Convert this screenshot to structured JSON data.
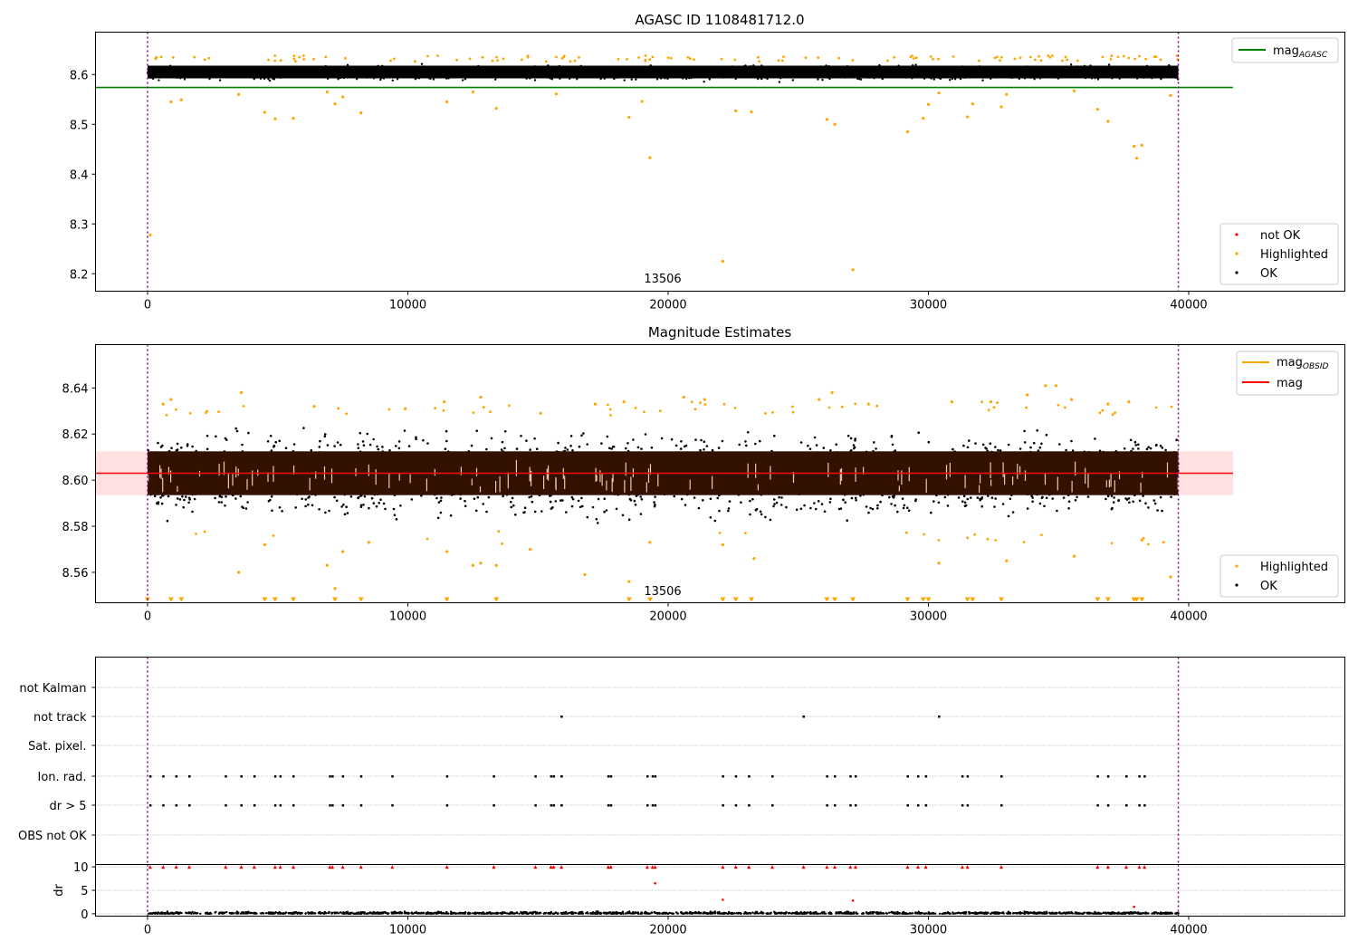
{
  "chart_data": [
    {
      "type": "scatter",
      "title": "AGASC ID 1108481712.0",
      "xlim": [
        -2000,
        46000
      ],
      "ylim": [
        8.165,
        8.685
      ],
      "xticks": [
        0,
        10000,
        20000,
        30000,
        40000
      ],
      "yticks": [
        8.2,
        8.3,
        8.4,
        8.5,
        8.6
      ],
      "ytick_labels": [
        "8.2",
        "8.3",
        "8.4",
        "8.5",
        "8.6"
      ],
      "vlines": [
        0,
        39600
      ],
      "annotation": {
        "text": "13506",
        "x": 19600,
        "y": 8.175
      },
      "band": {
        "xmin": 0,
        "xmax": 39600,
        "ymin": 8.585,
        "ymax": 8.625
      },
      "hline": {
        "name": "mag_AGASC",
        "value": 8.574,
        "xmin": -2000,
        "xmax": 41700,
        "color": "#008000"
      },
      "legend_lines": [
        {
          "label": "mag",
          "sub": "AGASC",
          "color": "#008000"
        }
      ],
      "legend_points": [
        {
          "label": "not OK",
          "color": "#ff0000"
        },
        {
          "label": "Highlighted",
          "color": "#ffa500"
        },
        {
          "label": "OK",
          "color": "#000000"
        }
      ],
      "highlighted_points": [
        [
          100,
          8.278
        ],
        [
          900,
          8.545
        ],
        [
          1300,
          8.549
        ],
        [
          3500,
          8.56
        ],
        [
          4500,
          8.524
        ],
        [
          4900,
          8.511
        ],
        [
          5600,
          8.512
        ],
        [
          6900,
          8.565
        ],
        [
          7200,
          8.541
        ],
        [
          7500,
          8.555
        ],
        [
          8200,
          8.523
        ],
        [
          11500,
          8.545
        ],
        [
          12500,
          8.565
        ],
        [
          13400,
          8.532
        ],
        [
          15700,
          8.561
        ],
        [
          18500,
          8.514
        ],
        [
          19000,
          8.546
        ],
        [
          19300,
          8.433
        ],
        [
          22100,
          8.225
        ],
        [
          22600,
          8.527
        ],
        [
          23200,
          8.525
        ],
        [
          26100,
          8.51
        ],
        [
          26400,
          8.5
        ],
        [
          27100,
          8.208
        ],
        [
          29200,
          8.485
        ],
        [
          29800,
          8.512
        ],
        [
          30000,
          8.54
        ],
        [
          30400,
          8.563
        ],
        [
          31500,
          8.515
        ],
        [
          31700,
          8.541
        ],
        [
          32800,
          8.535
        ],
        [
          33000,
          8.56
        ],
        [
          35600,
          8.567
        ],
        [
          36500,
          8.53
        ],
        [
          36900,
          8.506
        ],
        [
          37900,
          8.456
        ],
        [
          38000,
          8.432
        ],
        [
          38200,
          8.458
        ],
        [
          39300,
          8.558
        ]
      ]
    },
    {
      "type": "scatter",
      "title": "Magnitude Estimates",
      "xlim": [
        -2000,
        46000
      ],
      "ylim": [
        8.5468,
        8.6588
      ],
      "xticks": [
        0,
        10000,
        20000,
        30000,
        40000
      ],
      "yticks": [
        8.56,
        8.58,
        8.6,
        8.62,
        8.64
      ],
      "ytick_labels": [
        "8.56",
        "8.58",
        "8.60",
        "8.62",
        "8.64"
      ],
      "vlines": [
        0,
        39600
      ],
      "annotation": {
        "text": "13506",
        "x": 19600,
        "y": 8.5495
      },
      "mean_band": {
        "ymin": 8.5935,
        "ymax": 8.6125,
        "xmin": -2000,
        "xmax": 41700
      },
      "core_band": {
        "xmin": 0,
        "xmax": 39600,
        "ymin": 8.5935,
        "ymax": 8.6125
      },
      "hline": {
        "name": "mag",
        "value": 8.603,
        "xmin": -2000,
        "xmax": 41700,
        "color": "#ff0000"
      },
      "legend_lines": [
        {
          "label": "mag",
          "sub": "OBSID",
          "color": "#ffa500"
        },
        {
          "label": "mag",
          "sub": "",
          "color": "#ff0000"
        }
      ],
      "legend_points": [
        {
          "label": "Highlighted",
          "color": "#ffa500"
        },
        {
          "label": "OK",
          "color": "#000000"
        }
      ],
      "highlighted_points": [
        [
          600,
          8.633
        ],
        [
          900,
          8.635
        ],
        [
          3600,
          8.638
        ],
        [
          6400,
          8.632
        ],
        [
          9900,
          8.631
        ],
        [
          11400,
          8.634
        ],
        [
          12800,
          8.636
        ],
        [
          15100,
          8.629
        ],
        [
          17200,
          8.633
        ],
        [
          18300,
          8.634
        ],
        [
          20600,
          8.636
        ],
        [
          21400,
          8.635
        ],
        [
          25800,
          8.635
        ],
        [
          26300,
          8.638
        ],
        [
          27700,
          8.633
        ],
        [
          30900,
          8.634
        ],
        [
          32400,
          8.634
        ],
        [
          33800,
          8.637
        ],
        [
          34500,
          8.641
        ],
        [
          34900,
          8.641
        ],
        [
          35500,
          8.635
        ],
        [
          36900,
          8.633
        ],
        [
          37700,
          8.634
        ],
        [
          3500,
          8.56
        ],
        [
          4500,
          8.572
        ],
        [
          6900,
          8.563
        ],
        [
          7200,
          8.553
        ],
        [
          7500,
          8.569
        ],
        [
          8500,
          8.573
        ],
        [
          11500,
          8.569
        ],
        [
          12500,
          8.563
        ],
        [
          12800,
          8.564
        ],
        [
          13400,
          8.563
        ],
        [
          14700,
          8.57
        ],
        [
          16800,
          8.559
        ],
        [
          18500,
          8.556
        ],
        [
          19300,
          8.573
        ],
        [
          22100,
          8.572
        ],
        [
          23300,
          8.566
        ],
        [
          30400,
          8.564
        ],
        [
          33000,
          8.565
        ],
        [
          35600,
          8.567
        ],
        [
          38200,
          8.574
        ],
        [
          39300,
          8.558
        ]
      ],
      "clipped_x": [
        0,
        900,
        1300,
        4500,
        4900,
        5600,
        7200,
        8200,
        11500,
        13400,
        18500,
        19300,
        22100,
        22600,
        23200,
        26100,
        26400,
        27100,
        29200,
        29800,
        30000,
        31500,
        31700,
        32800,
        36500,
        36900,
        37900,
        38000,
        38200
      ],
      "clipped_y": 8.548
    },
    {
      "type": "scatter",
      "title": "",
      "xlim": [
        -2000,
        46000
      ],
      "xticks": [
        0,
        10000,
        20000,
        30000,
        40000
      ],
      "vlines": [
        0,
        39600
      ],
      "flag_rows": [
        "not Kalman",
        "not track",
        "Sat. pixel.",
        "Ion. rad.",
        "dr > 5",
        "OBS not OK"
      ],
      "flag_points": {
        "not track": [
          15900,
          25200,
          30400
        ],
        "Ion. rad.": [
          100,
          600,
          1100,
          1600,
          3000,
          3600,
          4100,
          4900,
          5100,
          5600,
          7000,
          7100,
          7500,
          8200,
          9400,
          11500,
          13300,
          14900,
          15500,
          15600,
          15900,
          17700,
          17800,
          19200,
          19400,
          19500,
          22100,
          22600,
          23100,
          24000,
          26100,
          26400,
          27000,
          27200,
          29200,
          29600,
          29900,
          31300,
          31500,
          32800,
          36500,
          36900,
          37600,
          38100,
          38300
        ],
        "dr > 5": [
          100,
          600,
          1100,
          1600,
          3000,
          3600,
          4100,
          4900,
          5100,
          5600,
          7000,
          7100,
          7500,
          8200,
          9400,
          11500,
          13300,
          14900,
          15500,
          15600,
          15900,
          17700,
          17800,
          19200,
          19400,
          19500,
          22100,
          22600,
          23100,
          24000,
          26100,
          26400,
          27000,
          27200,
          29200,
          29600,
          29900,
          31300,
          31500,
          32800,
          36500,
          36900,
          37600,
          38100,
          38300
        ]
      }
    },
    {
      "type": "scatter",
      "ylabel": "dr",
      "xlim": [
        -2000,
        46000
      ],
      "ylim": [
        -0.5,
        10.5
      ],
      "xticks": [
        0,
        10000,
        20000,
        30000,
        40000
      ],
      "xtick_labels": [
        "0",
        "10000",
        "20000",
        "30000",
        "40000"
      ],
      "yticks": [
        0,
        5,
        10
      ],
      "ytick_labels": [
        "0",
        "5",
        "10"
      ],
      "vlines": [
        0,
        39600
      ],
      "clipped_x": [
        100,
        600,
        1100,
        1600,
        3000,
        3600,
        4100,
        4900,
        5100,
        5600,
        7000,
        7100,
        7500,
        8200,
        9400,
        11500,
        13300,
        14900,
        15500,
        15600,
        15900,
        17700,
        17800,
        19200,
        19400,
        19500,
        22100,
        22600,
        23100,
        24000,
        25200,
        26100,
        26400,
        27000,
        27200,
        29200,
        29600,
        29900,
        31300,
        31500,
        32800,
        36500,
        36900,
        37600,
        38100,
        38300
      ],
      "clipped_y": 10,
      "outlier_points": [
        [
          19500,
          6.5
        ],
        [
          22100,
          3.0
        ],
        [
          27100,
          2.8
        ],
        [
          37900,
          1.5
        ]
      ]
    }
  ]
}
